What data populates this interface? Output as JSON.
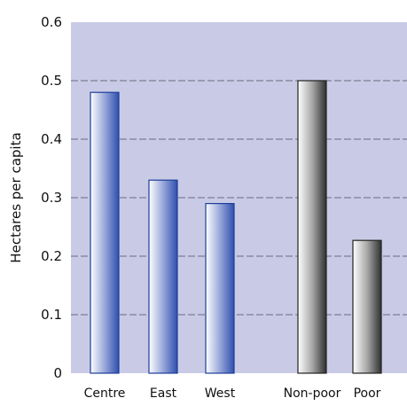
{
  "chart_data": {
    "type": "bar",
    "title": "",
    "xlabel": "",
    "ylabel": "Hectares per capita",
    "ylim": [
      0,
      0.6
    ],
    "yticks": [
      "0",
      "0.1",
      "0.2",
      "0.3",
      "0.4",
      "0.5",
      "0.6"
    ],
    "grid": true,
    "categories": [
      "Centre",
      "East",
      "West",
      "Non-poor",
      "Poor"
    ],
    "values": [
      0.48,
      0.33,
      0.29,
      0.5,
      0.227
    ],
    "groups": [
      {
        "members": [
          "Centre",
          "East",
          "West"
        ],
        "color": "#2f4fae"
      },
      {
        "members": [
          "Non-poor",
          "Poor"
        ],
        "color": "#3a3a3a"
      }
    ],
    "colors": {
      "plot_background": "#c9cbe6",
      "blue_bar": "#2f4fae",
      "blue_bar_light": "#ffffff",
      "gray_bar": "#3a3a3a",
      "gray_bar_light": "#ffffff"
    }
  }
}
